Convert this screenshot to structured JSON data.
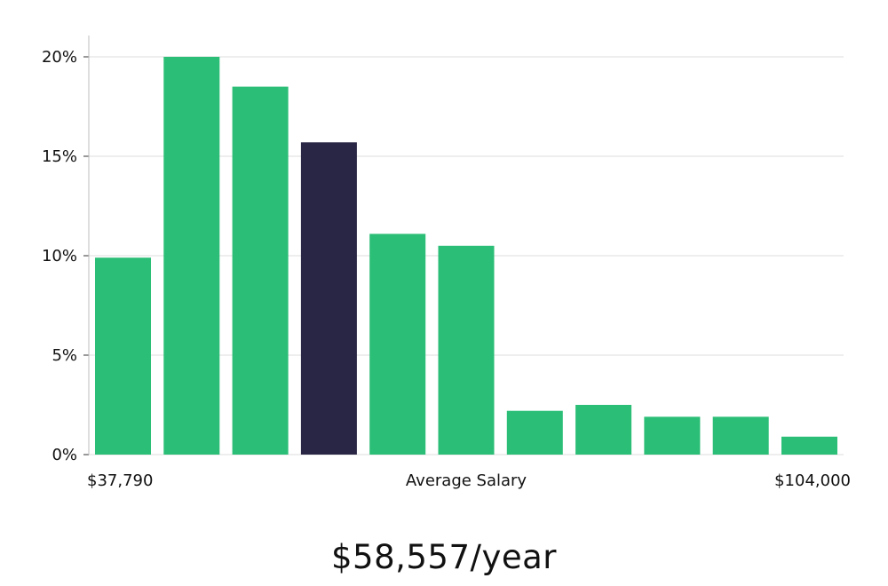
{
  "chart_data": {
    "type": "bar",
    "title": "",
    "xlabel": "Average Salary",
    "ylabel": "",
    "x_min_label": "$37,790",
    "x_max_label": "$104,000",
    "ylim": [
      0,
      20
    ],
    "yticks": [
      0,
      5,
      10,
      15,
      20
    ],
    "ytick_labels": [
      "0%",
      "5%",
      "10%",
      "15%",
      "20%"
    ],
    "grid": true,
    "values": [
      9.9,
      20.0,
      18.5,
      15.7,
      11.1,
      10.5,
      2.2,
      2.5,
      1.9,
      1.9,
      0.9
    ],
    "highlight_index": 3,
    "colors": {
      "bar": "#2bbe76",
      "highlight": "#292645",
      "grid": "#dcdcdc",
      "axis": "#bdbdbd"
    }
  },
  "salary_text": "$58,557/year"
}
